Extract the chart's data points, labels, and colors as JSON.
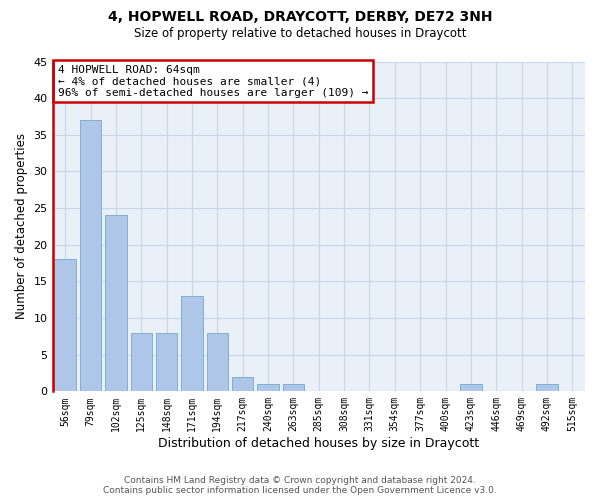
{
  "title": "4, HOPWELL ROAD, DRAYCOTT, DERBY, DE72 3NH",
  "subtitle": "Size of property relative to detached houses in Draycott",
  "xlabel": "Distribution of detached houses by size in Draycott",
  "ylabel": "Number of detached properties",
  "categories": [
    "56sqm",
    "79sqm",
    "102sqm",
    "125sqm",
    "148sqm",
    "171sqm",
    "194sqm",
    "217sqm",
    "240sqm",
    "263sqm",
    "285sqm",
    "308sqm",
    "331sqm",
    "354sqm",
    "377sqm",
    "400sqm",
    "423sqm",
    "446sqm",
    "469sqm",
    "492sqm",
    "515sqm"
  ],
  "values": [
    18,
    37,
    24,
    8,
    8,
    13,
    8,
    2,
    1,
    1,
    0,
    0,
    0,
    0,
    0,
    0,
    1,
    0,
    0,
    1,
    0
  ],
  "bar_color": "#aec6e8",
  "bar_edge_color": "#7fafd4",
  "highlight_line_color": "#cc0000",
  "ylim": [
    0,
    45
  ],
  "yticks": [
    0,
    5,
    10,
    15,
    20,
    25,
    30,
    35,
    40,
    45
  ],
  "annotation_line1": "4 HOPWELL ROAD: 64sqm",
  "annotation_line2": "← 4% of detached houses are smaller (4)",
  "annotation_line3": "96% of semi-detached houses are larger (109) →",
  "annotation_box_color": "#cc0000",
  "footer_line1": "Contains HM Land Registry data © Crown copyright and database right 2024.",
  "footer_line2": "Contains public sector information licensed under the Open Government Licence v3.0.",
  "bg_color": "#ffffff",
  "plot_bg_color": "#eaf0f8",
  "grid_color": "#c8d8e8",
  "fig_width": 6.0,
  "fig_height": 5.0
}
